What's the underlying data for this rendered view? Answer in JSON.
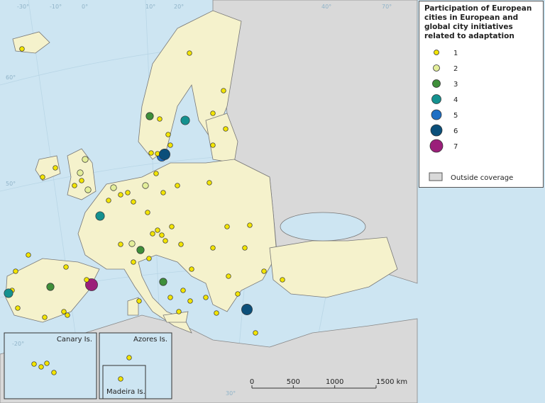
{
  "legend": {
    "title": "Participation of European cities in European and global city initiatives related to adaptation",
    "items": [
      {
        "label": "1",
        "color": "#f2e400"
      },
      {
        "label": "2",
        "color": "#e3ee9a"
      },
      {
        "label": "3",
        "color": "#3f8f3a"
      },
      {
        "label": "4",
        "color": "#14918f"
      },
      {
        "label": "5",
        "color": "#1f6fc4"
      },
      {
        "label": "6",
        "color": "#0b4f7a"
      },
      {
        "label": "7",
        "color": "#9b1f7a"
      }
    ],
    "outside": "Outside coverage"
  },
  "insets": [
    "Canary Is.",
    "Azores Is.",
    "Madeira Is."
  ],
  "graticule": [
    "-30°",
    "-20°",
    "-10°",
    "0°",
    "10°",
    "20°",
    "30°",
    "40°",
    "50°",
    "60°",
    "70°"
  ],
  "scale_bar": {
    "ticks": [
      0,
      500,
      1000,
      {
        "value": 1500,
        "label": "1500 km"
      }
    ]
  }
}
